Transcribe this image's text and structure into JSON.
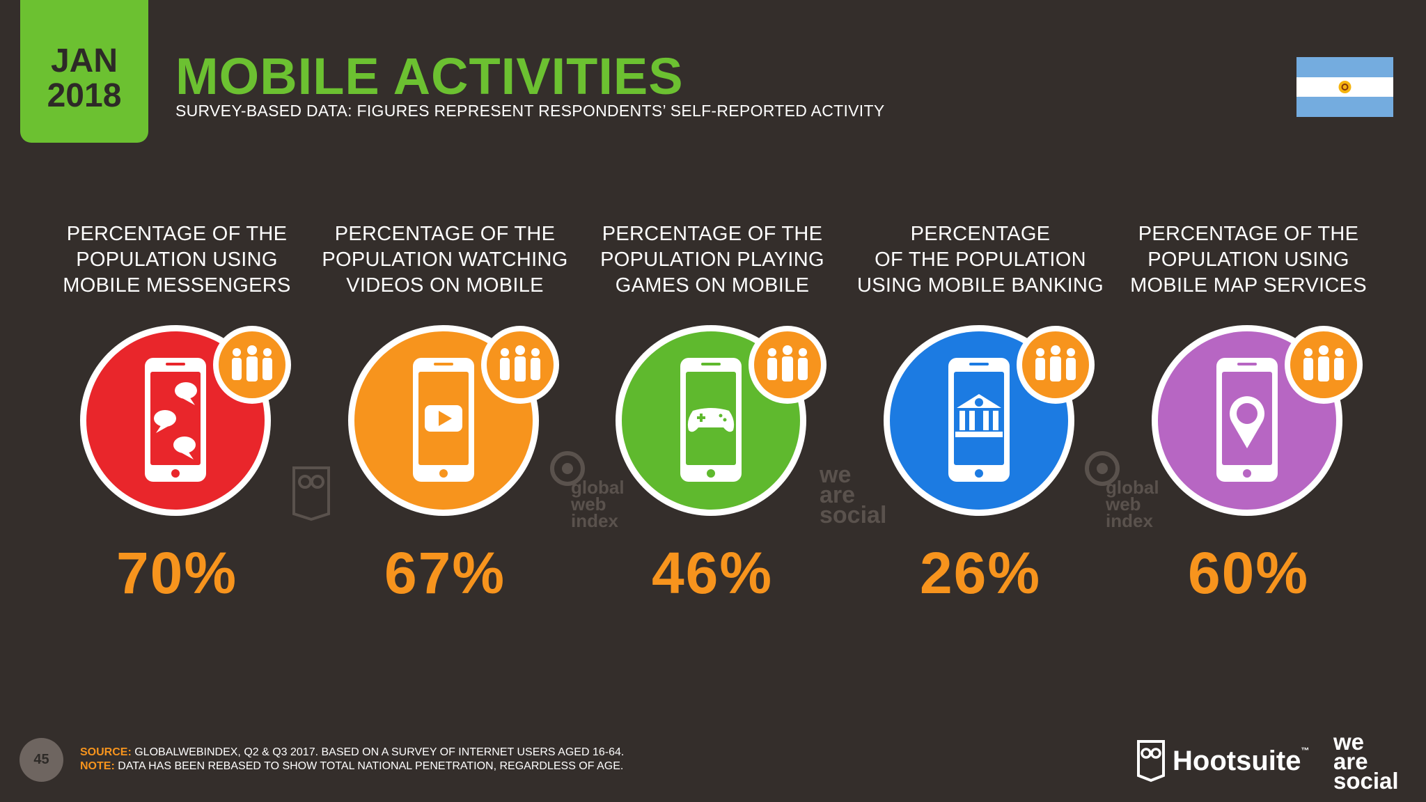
{
  "header": {
    "date_month": "JAN",
    "date_year": "2018",
    "title": "MOBILE ACTIVITIES",
    "subtitle": "SURVEY-BASED DATA: FIGURES REPRESENT RESPONDENTS’ SELF-REPORTED ACTIVITY",
    "flag_icon": "argentina-flag-icon"
  },
  "colors": {
    "background": "#342e2b",
    "accent_green": "#6cc131",
    "value_orange": "#f7941d",
    "badge_ring": "#f7941d"
  },
  "stats": [
    {
      "label_lines": [
        "PERCENTAGE OF THE",
        "POPULATION USING",
        "MOBILE MESSENGERS"
      ],
      "value": "70%",
      "color": "#e9262b",
      "icon": "chat-bubbles-icon"
    },
    {
      "label_lines": [
        "PERCENTAGE OF THE",
        "POPULATION WATCHING",
        "VIDEOS ON MOBILE"
      ],
      "value": "67%",
      "color": "#f7941d",
      "icon": "play-button-icon"
    },
    {
      "label_lines": [
        "PERCENTAGE OF THE",
        "POPULATION PLAYING",
        "GAMES ON MOBILE"
      ],
      "value": "46%",
      "color": "#5fb92e",
      "icon": "gamepad-icon"
    },
    {
      "label_lines": [
        "PERCENTAGE",
        "OF THE POPULATION",
        "USING MOBILE BANKING"
      ],
      "value": "26%",
      "color": "#1c7be2",
      "icon": "bank-icon"
    },
    {
      "label_lines": [
        "PERCENTAGE OF THE",
        "POPULATION USING",
        "MOBILE MAP SERVICES"
      ],
      "value": "60%",
      "color": "#b766c3",
      "icon": "map-pin-icon"
    }
  ],
  "watermarks": {
    "gwi_lines": [
      "global",
      "web",
      "index"
    ],
    "was_lines": [
      "we",
      "are",
      "social"
    ]
  },
  "footer": {
    "page_number": "45",
    "source_key": "SOURCE:",
    "source_text": "GLOBALWEBINDEX, Q2 & Q3 2017. BASED ON A SURVEY OF INTERNET USERS AGED 16-64.",
    "note_key": "NOTE:",
    "note_text": "DATA HAS BEEN REBASED TO SHOW TOTAL NATIONAL PENETRATION, REGARDLESS OF AGE.",
    "hootsuite_name": "Hootsuite",
    "hootsuite_tm": "™",
    "was_lines": [
      "we",
      "are",
      "social"
    ]
  }
}
